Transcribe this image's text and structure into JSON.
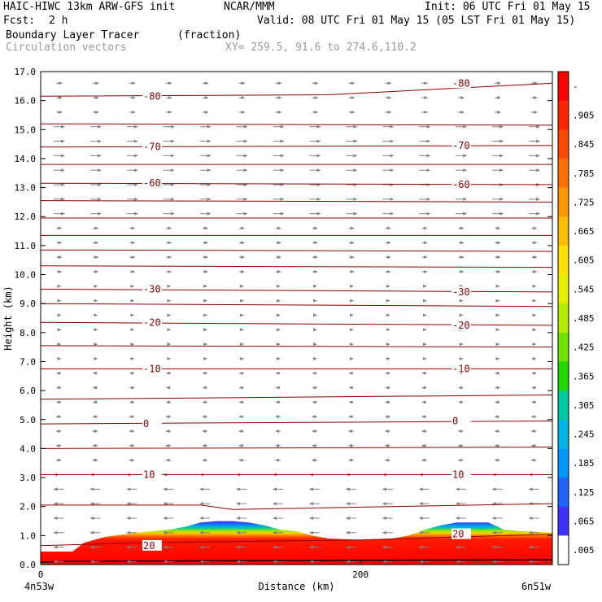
{
  "header": {
    "model": "HAIC-HIWC 13km ARW-GFS init",
    "org": "NCAR/MMM",
    "init": "Init: 06 UTC Fri 01 May 15",
    "fcst_label": "Fcst:",
    "fcst_value": "2 h",
    "valid": "Valid: 08 UTC Fri 01 May 15 (05 LST Fri 01 May 15)",
    "field": "Boundary Layer Tracer",
    "units": "(fraction)",
    "vectors": "Circulation vectors",
    "xy": "XY= 259.5, 91.6 to 274.6,110.2"
  },
  "chart_data": {
    "type": "area",
    "xlabel": "Distance (km)",
    "ylabel": "Height (km)",
    "xlim": [
      0,
      320
    ],
    "ylim": [
      0,
      17
    ],
    "x_ticks": [
      "0",
      "200"
    ],
    "x_left_label": "4n53w",
    "x_right_label": "6n51w",
    "y_ticks": [
      "0.0",
      "1.0",
      "2.0",
      "3.0",
      "4.0",
      "5.0",
      "6.0",
      "7.0",
      "8.0",
      "9.0",
      "10.0",
      "11.0",
      "12.0",
      "13.0",
      "14.0",
      "15.0",
      "16.0",
      "17.0"
    ],
    "colorbar": {
      "labels": [
        "-",
        ".905",
        ".845",
        ".785",
        ".725",
        ".665",
        ".605",
        ".545",
        ".485",
        ".425",
        ".365",
        ".305",
        ".245",
        ".185",
        ".125",
        ".065",
        ".005"
      ],
      "colors": [
        "#ff0000",
        "#ff2400",
        "#ff4a00",
        "#ff7000",
        "#ff9600",
        "#ffbc00",
        "#ffe000",
        "#e6f000",
        "#b4ec00",
        "#6ee600",
        "#1ed800",
        "#00c8a0",
        "#00b4e6",
        "#0096ff",
        "#1e64ff",
        "#3c32ff",
        "#ffffff"
      ]
    },
    "tracer_top_km": [
      [
        0,
        0.45
      ],
      [
        20,
        0.45
      ],
      [
        27,
        0.75
      ],
      [
        40,
        0.95
      ],
      [
        60,
        1.1
      ],
      [
        80,
        1.2
      ],
      [
        90,
        1.3
      ],
      [
        100,
        1.45
      ],
      [
        110,
        1.5
      ],
      [
        120,
        1.5
      ],
      [
        130,
        1.45
      ],
      [
        140,
        1.35
      ],
      [
        150,
        1.2
      ],
      [
        160,
        1.15
      ],
      [
        170,
        1.0
      ],
      [
        180,
        0.9
      ],
      [
        200,
        0.85
      ],
      [
        220,
        0.9
      ],
      [
        230,
        1.0
      ],
      [
        240,
        1.2
      ],
      [
        250,
        1.35
      ],
      [
        260,
        1.45
      ],
      [
        280,
        1.45
      ],
      [
        290,
        1.2
      ],
      [
        300,
        1.15
      ],
      [
        320,
        1.1
      ]
    ],
    "contours": [
      {
        "label": "-80",
        "points": [
          [
            0,
            16.15
          ],
          [
            180,
            16.2
          ],
          [
            320,
            16.6
          ]
        ]
      },
      {
        "label": "",
        "points": [
          [
            0,
            15.2
          ],
          [
            320,
            15.15
          ]
        ]
      },
      {
        "label": "-70",
        "points": [
          [
            0,
            14.4
          ],
          [
            320,
            14.45
          ]
        ]
      },
      {
        "label": "",
        "points": [
          [
            0,
            13.8
          ],
          [
            320,
            13.8
          ]
        ]
      },
      {
        "label": "-60",
        "points": [
          [
            0,
            13.15
          ],
          [
            320,
            13.1
          ]
        ]
      },
      {
        "label": "",
        "points": [
          [
            0,
            12.55
          ],
          [
            320,
            12.5
          ]
        ]
      },
      {
        "label": "",
        "points": [
          [
            0,
            11.95
          ],
          [
            320,
            11.95
          ]
        ]
      },
      {
        "label": "",
        "points": [
          [
            0,
            11.35
          ],
          [
            320,
            11.35
          ]
        ]
      },
      {
        "label": "",
        "points": [
          [
            0,
            10.85
          ],
          [
            320,
            10.8
          ]
        ]
      },
      {
        "label": "",
        "points": [
          [
            0,
            10.3
          ],
          [
            320,
            10.25
          ]
        ]
      },
      {
        "label": "-30",
        "points": [
          [
            0,
            9.5
          ],
          [
            320,
            9.4
          ]
        ]
      },
      {
        "label": "",
        "points": [
          [
            0,
            9.0
          ],
          [
            320,
            8.9
          ]
        ]
      },
      {
        "label": "-20",
        "points": [
          [
            0,
            8.35
          ],
          [
            320,
            8.25
          ]
        ]
      },
      {
        "label": "",
        "points": [
          [
            0,
            7.55
          ],
          [
            320,
            7.5
          ]
        ]
      },
      {
        "label": "-10",
        "points": [
          [
            0,
            6.75
          ],
          [
            320,
            6.75
          ]
        ]
      },
      {
        "label": "",
        "points": [
          [
            0,
            5.7
          ],
          [
            320,
            5.85
          ]
        ]
      },
      {
        "label": "0",
        "points": [
          [
            0,
            4.85
          ],
          [
            320,
            4.95
          ]
        ]
      },
      {
        "label": "",
        "points": [
          [
            0,
            4.0
          ],
          [
            320,
            4.05
          ]
        ]
      },
      {
        "label": "10",
        "points": [
          [
            0,
            3.1
          ],
          [
            320,
            3.1
          ]
        ]
      },
      {
        "label": "",
        "points": [
          [
            0,
            2.05
          ],
          [
            100,
            2.05
          ],
          [
            120,
            1.9
          ],
          [
            320,
            2.1
          ]
        ]
      },
      {
        "label": "20",
        "points": [
          [
            0,
            0.65
          ],
          [
            60,
            0.75
          ],
          [
            200,
            0.85
          ],
          [
            320,
            1.05
          ]
        ]
      }
    ]
  }
}
